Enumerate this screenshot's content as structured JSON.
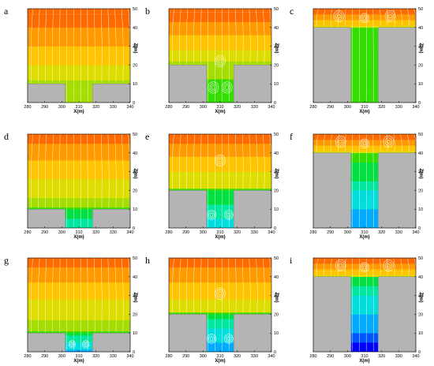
{
  "colors": {
    "building": "#b4b4b4",
    "streamline": "#ffffff",
    "bands": [
      "#0000ff",
      "#0055ff",
      "#00aaff",
      "#00dddd",
      "#00e8a0",
      "#00e040",
      "#33dd00",
      "#a6dd00",
      "#dddd00",
      "#ffc400",
      "#ff9900",
      "#ff6a00"
    ]
  },
  "chart_data": [
    {
      "id": "a",
      "type": "heatmap",
      "label": "a",
      "xlabel": "X(m)",
      "ylabel": "Z(m)",
      "xlim": [
        280,
        340
      ],
      "ylim": [
        0,
        50
      ],
      "x_ticks": [
        "280",
        "290",
        "300",
        "310",
        "320",
        "330",
        "340"
      ],
      "y_ticks": [
        "0",
        "10",
        "20",
        "30",
        "40",
        "50"
      ],
      "buildings": [
        {
          "x": [
            280,
            302
          ],
          "height": 10
        },
        {
          "x": [
            318,
            340
          ],
          "height": 10
        }
      ],
      "canyon": {
        "x": [
          302,
          318
        ]
      },
      "aspect_ratio": 0.5,
      "field": {
        "deep": 6.5,
        "shallow": 7,
        "bands": [
          {
            "z": 12,
            "level": 6.5
          },
          {
            "z": 20,
            "level": 8
          },
          {
            "z": 30,
            "level": 9
          },
          {
            "z": 40,
            "level": 10
          },
          {
            "z": 47,
            "level": 11
          }
        ]
      },
      "vortices": []
    },
    {
      "id": "b",
      "type": "heatmap",
      "label": "b",
      "xlabel": "X(m)",
      "ylabel": "Z(m)",
      "xlim": [
        280,
        340
      ],
      "ylim": [
        0,
        50
      ],
      "x_ticks": [
        "280",
        "290",
        "300",
        "310",
        "320",
        "330",
        "340"
      ],
      "y_ticks": [
        "0",
        "10",
        "20",
        "30",
        "40",
        "50"
      ],
      "buildings": [
        {
          "x": [
            280,
            302
          ],
          "height": 20
        },
        {
          "x": [
            318,
            340
          ],
          "height": 20
        }
      ],
      "canyon": {
        "x": [
          302,
          318
        ]
      },
      "aspect_ratio": 1.25,
      "field": {
        "deep": 6,
        "shallow": 6.8,
        "bands": [
          {
            "z": 22,
            "level": 6.7
          },
          {
            "z": 28,
            "level": 8
          },
          {
            "z": 36,
            "level": 9
          },
          {
            "z": 43,
            "level": 10
          },
          {
            "z": 48,
            "level": 11
          }
        ]
      },
      "vortices": [
        {
          "x": 310,
          "z": 22,
          "r": 3
        },
        {
          "x": 306,
          "z": 8,
          "r": 3
        },
        {
          "x": 314,
          "z": 8,
          "r": 3
        }
      ]
    },
    {
      "id": "c",
      "type": "heatmap",
      "label": "c",
      "xlabel": "X(m)",
      "ylabel": "Z(m)",
      "xlim": [
        280,
        340
      ],
      "ylim": [
        0,
        50
      ],
      "x_ticks": [
        "280",
        "290",
        "300",
        "310",
        "320",
        "330",
        "340"
      ],
      "y_ticks": [
        "0",
        "10",
        "20",
        "30",
        "40",
        "50"
      ],
      "buildings": [
        {
          "x": [
            280,
            302
          ],
          "height": 40
        },
        {
          "x": [
            318,
            340
          ],
          "height": 40
        }
      ],
      "canyon": {
        "x": [
          302,
          318
        ]
      },
      "aspect_ratio": 2.5,
      "field": {
        "deep": 5.5,
        "shallow": 6.5,
        "bands": [
          {
            "z": 41,
            "level": 8
          },
          {
            "z": 44,
            "level": 9
          },
          {
            "z": 47,
            "level": 10
          },
          {
            "z": 50,
            "level": 11
          }
        ]
      },
      "vortices": [
        {
          "x": 295,
          "z": 46,
          "r": 3
        },
        {
          "x": 310,
          "z": 45,
          "r": 2.5
        },
        {
          "x": 325,
          "z": 46,
          "r": 3
        }
      ]
    },
    {
      "id": "d",
      "type": "heatmap",
      "label": "d",
      "xlabel": "X(m)",
      "ylabel": "Z(m)",
      "xlim": [
        280,
        340
      ],
      "ylim": [
        0,
        50
      ],
      "x_ticks": [
        "280",
        "290",
        "300",
        "310",
        "320",
        "330",
        "340"
      ],
      "y_ticks": [
        "0",
        "10",
        "20",
        "30",
        "40",
        "50"
      ],
      "buildings": [
        {
          "x": [
            280,
            302
          ],
          "height": 10
        },
        {
          "x": [
            318,
            340
          ],
          "height": 10
        }
      ],
      "canyon": {
        "x": [
          302,
          318
        ]
      },
      "aspect_ratio": 0.5,
      "field": {
        "deep": 3.5,
        "shallow": 5.5,
        "bands": [
          {
            "z": 11,
            "level": 5.5
          },
          {
            "z": 16,
            "level": 6.5
          },
          {
            "z": 26,
            "level": 8
          },
          {
            "z": 36,
            "level": 9
          },
          {
            "z": 45,
            "level": 10
          },
          {
            "z": 50,
            "level": 11
          }
        ]
      },
      "vortices": []
    },
    {
      "id": "e",
      "type": "heatmap",
      "label": "e",
      "xlabel": "X(m)",
      "ylabel": "Z(m)",
      "xlim": [
        280,
        340
      ],
      "ylim": [
        0,
        50
      ],
      "x_ticks": [
        "280",
        "290",
        "300",
        "310",
        "320",
        "330",
        "340"
      ],
      "y_ticks": [
        "0",
        "10",
        "20",
        "30",
        "40",
        "50"
      ],
      "buildings": [
        {
          "x": [
            280,
            302
          ],
          "height": 20
        },
        {
          "x": [
            318,
            340
          ],
          "height": 20
        }
      ],
      "canyon": {
        "x": [
          302,
          318
        ]
      },
      "aspect_ratio": 1.25,
      "field": {
        "deep": 3,
        "shallow": 5.5,
        "bands": [
          {
            "z": 21,
            "level": 6.3
          },
          {
            "z": 30,
            "level": 7.5
          },
          {
            "z": 38,
            "level": 9
          },
          {
            "z": 45,
            "level": 10
          },
          {
            "z": 50,
            "level": 11
          }
        ]
      },
      "vortices": [
        {
          "x": 310,
          "z": 36,
          "r": 3
        },
        {
          "x": 305,
          "z": 7,
          "r": 2.5
        },
        {
          "x": 315,
          "z": 7,
          "r": 2.5
        }
      ]
    },
    {
      "id": "f",
      "type": "heatmap",
      "label": "f",
      "xlabel": "X(m)",
      "ylabel": "Z(m)",
      "xlim": [
        280,
        340
      ],
      "ylim": [
        0,
        50
      ],
      "x_ticks": [
        "280",
        "290",
        "300",
        "310",
        "320",
        "330",
        "340"
      ],
      "y_ticks": [
        "0",
        "10",
        "20",
        "30",
        "40",
        "50"
      ],
      "buildings": [
        {
          "x": [
            280,
            302
          ],
          "height": 40
        },
        {
          "x": [
            318,
            340
          ],
          "height": 40
        }
      ],
      "canyon": {
        "x": [
          302,
          318
        ]
      },
      "aspect_ratio": 2.5,
      "field": {
        "deep": 1.5,
        "shallow": 6,
        "bands": [
          {
            "z": 41,
            "level": 8
          },
          {
            "z": 44,
            "level": 9
          },
          {
            "z": 47,
            "level": 10
          },
          {
            "z": 50,
            "level": 11
          }
        ]
      },
      "vortices": [
        {
          "x": 296,
          "z": 46,
          "r": 3
        },
        {
          "x": 310,
          "z": 45,
          "r": 2.5
        },
        {
          "x": 324,
          "z": 46,
          "r": 3
        }
      ]
    },
    {
      "id": "g",
      "type": "heatmap",
      "label": "g",
      "xlabel": "X(m)",
      "ylabel": "Z(m)",
      "xlim": [
        280,
        340
      ],
      "ylim": [
        0,
        50
      ],
      "x_ticks": [
        "280",
        "290",
        "300",
        "310",
        "320",
        "330",
        "340"
      ],
      "y_ticks": [
        "0",
        "10",
        "20",
        "30",
        "40",
        "50"
      ],
      "buildings": [
        {
          "x": [
            280,
            302
          ],
          "height": 10
        },
        {
          "x": [
            318,
            340
          ],
          "height": 10
        }
      ],
      "canyon": {
        "x": [
          302,
          318
        ]
      },
      "aspect_ratio": 0.5,
      "field": {
        "deep": 2,
        "shallow": 5,
        "bands": [
          {
            "z": 11,
            "level": 5.5
          },
          {
            "z": 17,
            "level": 6.5
          },
          {
            "z": 28,
            "level": 8
          },
          {
            "z": 37,
            "level": 9
          },
          {
            "z": 45,
            "level": 10
          },
          {
            "z": 50,
            "level": 11
          }
        ]
      },
      "vortices": [
        {
          "x": 306,
          "z": 4,
          "r": 2
        },
        {
          "x": 314,
          "z": 4,
          "r": 2
        }
      ]
    },
    {
      "id": "h",
      "type": "heatmap",
      "label": "h",
      "xlabel": "X(m)",
      "ylabel": "Z(m)",
      "xlim": [
        280,
        340
      ],
      "ylim": [
        0,
        50
      ],
      "x_ticks": [
        "280",
        "290",
        "300",
        "310",
        "320",
        "330",
        "340"
      ],
      "y_ticks": [
        "0",
        "10",
        "20",
        "30",
        "40",
        "50"
      ],
      "buildings": [
        {
          "x": [
            280,
            302
          ],
          "height": 20
        },
        {
          "x": [
            318,
            340
          ],
          "height": 20
        }
      ],
      "canyon": {
        "x": [
          302,
          318
        ]
      },
      "aspect_ratio": 1.25,
      "field": {
        "deep": 1.5,
        "shallow": 5,
        "bands": [
          {
            "z": 21,
            "level": 6
          },
          {
            "z": 28,
            "level": 7.5
          },
          {
            "z": 37,
            "level": 9
          },
          {
            "z": 45,
            "level": 10
          },
          {
            "z": 50,
            "level": 11
          }
        ]
      },
      "vortices": [
        {
          "x": 310,
          "z": 31,
          "r": 3
        },
        {
          "x": 305,
          "z": 7,
          "r": 2.5
        },
        {
          "x": 315,
          "z": 7,
          "r": 2.5
        }
      ]
    },
    {
      "id": "i",
      "type": "heatmap",
      "label": "i",
      "xlabel": "X(m)",
      "ylabel": "Z(m)",
      "xlim": [
        280,
        340
      ],
      "ylim": [
        0,
        50
      ],
      "x_ticks": [
        "280",
        "290",
        "300",
        "310",
        "320",
        "330",
        "340"
      ],
      "y_ticks": [
        "0",
        "10",
        "20",
        "30",
        "40",
        "50"
      ],
      "buildings": [
        {
          "x": [
            280,
            302
          ],
          "height": 40
        },
        {
          "x": [
            318,
            340
          ],
          "height": 40
        }
      ],
      "canyon": {
        "x": [
          302,
          318
        ]
      },
      "aspect_ratio": 2.5,
      "field": {
        "deep": 0,
        "shallow": 5,
        "bands": [
          {
            "z": 41,
            "level": 7.5
          },
          {
            "z": 44,
            "level": 9
          },
          {
            "z": 47,
            "level": 10
          },
          {
            "z": 50,
            "level": 11
          }
        ]
      },
      "vortices": [
        {
          "x": 296,
          "z": 46,
          "r": 3
        },
        {
          "x": 310,
          "z": 45,
          "r": 2.5
        },
        {
          "x": 324,
          "z": 46,
          "r": 3
        }
      ]
    }
  ]
}
